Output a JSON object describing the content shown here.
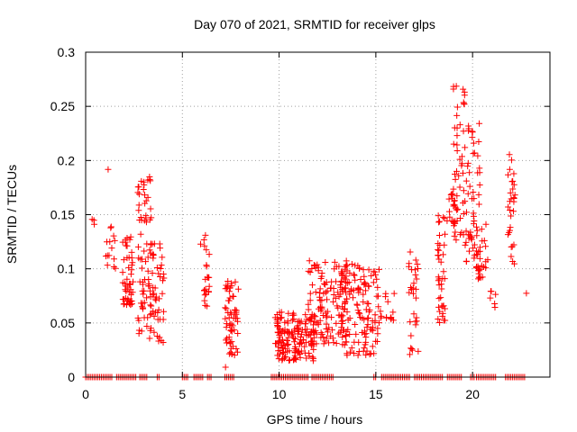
{
  "chart_data": {
    "type": "scatter",
    "title": "Day 070 of 2021, SRMTID for receiver glps",
    "xlabel": "GPS time / hours",
    "ylabel": "SRMTID / TECUs",
    "xlim": [
      0,
      24
    ],
    "ylim": [
      0,
      0.3
    ],
    "x_ticks": [
      0,
      5,
      10,
      15,
      20
    ],
    "x_tick_labels": [
      "0",
      "5",
      "10",
      "15",
      "20"
    ],
    "y_ticks": [
      0,
      0.05,
      0.1,
      0.15,
      0.2,
      0.25,
      0.3
    ],
    "y_tick_labels": [
      "0",
      "0.05",
      "0.1",
      "0.15",
      "0.2",
      "0.25",
      "0.3"
    ],
    "grid": true,
    "marker": "plus",
    "color": "#ff0000",
    "clusters": [
      {
        "x_range": [
          0.3,
          0.45
        ],
        "y_range": [
          0.14,
          0.155
        ],
        "count": 3
      },
      {
        "x_range": [
          1.15,
          1.25
        ],
        "y_range": [
          0.19,
          0.196
        ],
        "count": 1
      },
      {
        "x_range": [
          1.0,
          1.6
        ],
        "y_range": [
          0.1,
          0.145
        ],
        "count": 14
      },
      {
        "x_range": [
          1.9,
          2.5
        ],
        "y_range": [
          0.065,
          0.13
        ],
        "count": 50
      },
      {
        "x_range": [
          2.7,
          3.4
        ],
        "y_range": [
          0.04,
          0.185
        ],
        "count": 70
      },
      {
        "x_range": [
          3.3,
          4.1
        ],
        "y_range": [
          0.032,
          0.125
        ],
        "count": 50
      },
      {
        "x_range": [
          5.9,
          6.0
        ],
        "y_range": [
          0.12,
          0.127
        ],
        "count": 1
      },
      {
        "x_range": [
          6.1,
          6.4
        ],
        "y_range": [
          0.065,
          0.135
        ],
        "count": 22
      },
      {
        "x_range": [
          7.2,
          7.9
        ],
        "y_range": [
          0.02,
          0.09
        ],
        "count": 60
      },
      {
        "x_range": [
          7.2,
          7.3
        ],
        "y_range": [
          0.009,
          0.013
        ],
        "count": 1
      },
      {
        "x_range": [
          9.8,
          11.8
        ],
        "y_range": [
          0.015,
          0.06
        ],
        "count": 160
      },
      {
        "x_range": [
          11.5,
          13.5
        ],
        "y_range": [
          0.03,
          0.108
        ],
        "count": 130
      },
      {
        "x_range": [
          13.2,
          15.2
        ],
        "y_range": [
          0.02,
          0.105
        ],
        "count": 130
      },
      {
        "x_range": [
          15.2,
          16.0
        ],
        "y_range": [
          0.045,
          0.08
        ],
        "count": 14
      },
      {
        "x_range": [
          16.7,
          17.2
        ],
        "y_range": [
          0.02,
          0.128
        ],
        "count": 30
      },
      {
        "x_range": [
          18.2,
          18.6
        ],
        "y_range": [
          0.05,
          0.15
        ],
        "count": 40
      },
      {
        "x_range": [
          18.6,
          19.2
        ],
        "y_range": [
          0.125,
          0.175
        ],
        "count": 20
      },
      {
        "x_range": [
          19.0,
          19.6
        ],
        "y_range": [
          0.13,
          0.27
        ],
        "count": 45
      },
      {
        "x_range": [
          19.6,
          20.4
        ],
        "y_range": [
          0.1,
          0.235
        ],
        "count": 60
      },
      {
        "x_range": [
          20.2,
          20.8
        ],
        "y_range": [
          0.09,
          0.15
        ],
        "count": 25
      },
      {
        "x_range": [
          20.9,
          21.2
        ],
        "y_range": [
          0.063,
          0.082
        ],
        "count": 6
      },
      {
        "x_range": [
          21.8,
          22.2
        ],
        "y_range": [
          0.1,
          0.206
        ],
        "count": 30
      },
      {
        "x_range": [
          22.7,
          22.9
        ],
        "y_range": [
          0.075,
          0.078
        ],
        "count": 1
      }
    ],
    "zero_band": [
      [
        0.0,
        1.4
      ],
      [
        1.6,
        2.6
      ],
      [
        2.8,
        3.2
      ],
      [
        3.7,
        3.8
      ],
      [
        5.0,
        5.3
      ],
      [
        5.6,
        6.1
      ],
      [
        6.3,
        6.5
      ],
      [
        7.2,
        7.7
      ],
      [
        9.6,
        11.5
      ],
      [
        11.7,
        12.8
      ],
      [
        14.9,
        15.0
      ],
      [
        15.3,
        16.8
      ],
      [
        17.0,
        18.5
      ],
      [
        18.7,
        19.5
      ],
      [
        19.9,
        20.1
      ],
      [
        20.2,
        21.2
      ],
      [
        21.7,
        22.7
      ]
    ]
  }
}
